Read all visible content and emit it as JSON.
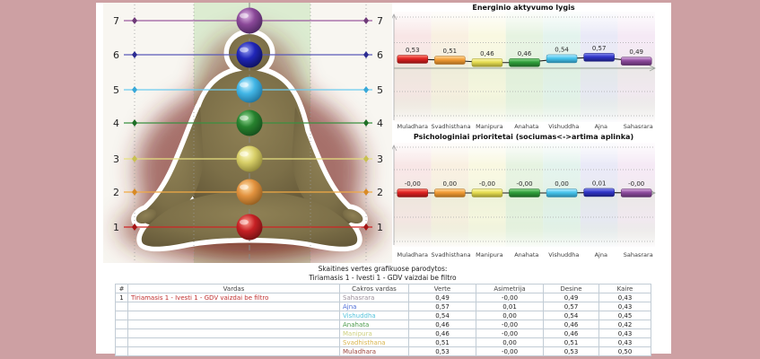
{
  "window": {
    "frame_color": "#cda0a3"
  },
  "left_panel": {
    "levels": [
      {
        "num": "7",
        "line_color": "#9a5aa0",
        "diamond": "#6e3a78",
        "sphere": {
          "base": "#8a4898",
          "light": "#e2bce8",
          "dark": "#47245a"
        }
      },
      {
        "num": "6",
        "line_color": "#5a5ab8",
        "diamond": "#2c2c92",
        "sphere": {
          "base": "#2026b8",
          "light": "#959df2",
          "dark": "#0c0f58"
        }
      },
      {
        "num": "5",
        "line_color": "#6cccf0",
        "diamond": "#38a8d8",
        "sphere": {
          "base": "#42b6e6",
          "light": "#d2f4ff",
          "dark": "#1d6e97"
        }
      },
      {
        "num": "4",
        "line_color": "#3a9040",
        "diamond": "#1f6e26",
        "sphere": {
          "base": "#27822e",
          "light": "#9cde9c",
          "dark": "#144a1a"
        }
      },
      {
        "num": "3",
        "line_color": "#e6e080",
        "diamond": "#c8c050",
        "sphere": {
          "base": "#d8cf68",
          "light": "#fefbca",
          "dark": "#8a8134"
        }
      },
      {
        "num": "2",
        "line_color": "#f2aa44",
        "diamond": "#d88a26",
        "sphere": {
          "base": "#e2923e",
          "light": "#ffe1ae",
          "dark": "#8d591d"
        }
      },
      {
        "num": "1",
        "line_color": "#d02424",
        "diamond": "#a51515",
        "sphere": {
          "base": "#c62024",
          "light": "#ff9f91",
          "dark": "#6d1011"
        }
      }
    ]
  },
  "chart_data": [
    {
      "type": "bar",
      "title": "Energinio aktyvumo lygis",
      "categories": [
        "Muladhara",
        "Svadhisthana",
        "Manipura",
        "Anahata",
        "Vishuddha",
        "Ajna",
        "Sahasrara"
      ],
      "values": [
        0.53,
        0.51,
        0.46,
        0.46,
        0.54,
        0.57,
        0.49
      ],
      "value_labels": [
        "0,53",
        "0,51",
        "0,46",
        "0,46",
        "0,54",
        "0,57",
        "0,49"
      ],
      "xlabel": "",
      "ylabel": "",
      "grid": "dotted-horizontal",
      "legend": false
    },
    {
      "type": "bar",
      "title": "Psichologiniai prioritetai (sociumas<->artima aplinka)",
      "categories": [
        "Muladhara",
        "Svadhisthana",
        "Manipura",
        "Anahata",
        "Vishuddha",
        "Ajna",
        "Sahasrara"
      ],
      "values": [
        -0.0,
        0.0,
        -0.0,
        -0.0,
        0.0,
        0.01,
        -0.0
      ],
      "value_labels": [
        "-0,00",
        "0,00",
        "-0,00",
        "-0,00",
        "0,00",
        "0,01",
        "-0,00"
      ],
      "xlabel": "",
      "ylabel": "",
      "grid": "dotted-horizontal",
      "legend": false
    }
  ],
  "chart_style": {
    "bar_colors": [
      {
        "base": "#dd2020",
        "light": "#ff8878",
        "dark": "#8e1414"
      },
      {
        "base": "#f09a34",
        "light": "#ffd79a",
        "dark": "#a86a1e"
      },
      {
        "base": "#e6dd52",
        "light": "#fbf7ae",
        "dark": "#9a942e"
      },
      {
        "base": "#2f9e3a",
        "light": "#8ed88e",
        "dark": "#1d6424"
      },
      {
        "base": "#46c4ec",
        "light": "#b8ecff",
        "dark": "#2a84a4"
      },
      {
        "base": "#2f34c8",
        "light": "#8a90f0",
        "dark": "#1c1f7a"
      },
      {
        "base": "#8c4a9c",
        "light": "#d6aade",
        "dark": "#5a2e66"
      }
    ],
    "stripe_colors": [
      "#f6e0e0",
      "#f8ecd9",
      "#f7f6d9",
      "#e0f0da",
      "#dcf0e9",
      "#e3e3f5",
      "#f2e3f2"
    ]
  },
  "summary": {
    "line1": "Skaitines vertes grafikuose parodytos:",
    "line2": "Tiriamasis 1 - Ivesti 1 - GDV vaizdai be filtro"
  },
  "table": {
    "headers": [
      "#",
      "Vardas",
      "Cakros vardas",
      "Verte",
      "Asimetrija",
      "Desine",
      "Kaire"
    ],
    "first_row_num": "1",
    "first_row_vardas": "Tiriamasis 1 - Ivesti 1 - GDV vaizdai be filtro",
    "rows": [
      {
        "chakra": "Sahasrara",
        "color": "#9b8f9b",
        "verte": "0,49",
        "asimetrija": "-0,00",
        "desine": "0,49",
        "kaire": "0,43"
      },
      {
        "chakra": "Ajna",
        "color": "#4f6fd8",
        "verte": "0,57",
        "asimetrija": "0,01",
        "desine": "0,57",
        "kaire": "0,43"
      },
      {
        "chakra": "Vishuddha",
        "color": "#55c3dc",
        "verte": "0,54",
        "asimetrija": "0,00",
        "desine": "0,54",
        "kaire": "0,45"
      },
      {
        "chakra": "Anahata",
        "color": "#4c9b4c",
        "verte": "0,46",
        "asimetrija": "-0,00",
        "desine": "0,46",
        "kaire": "0,42"
      },
      {
        "chakra": "Manipura",
        "color": "#cdcf7e",
        "verte": "0,46",
        "asimetrija": "-0,00",
        "desine": "0,46",
        "kaire": "0,43"
      },
      {
        "chakra": "Svadhisthana",
        "color": "#d9b54e",
        "verte": "0,51",
        "asimetrija": "0,00",
        "desine": "0,51",
        "kaire": "0,43"
      },
      {
        "chakra": "Muladhara",
        "color": "#9c4a40",
        "verte": "0,53",
        "asimetrija": "-0,00",
        "desine": "0,53",
        "kaire": "0,50"
      }
    ]
  }
}
